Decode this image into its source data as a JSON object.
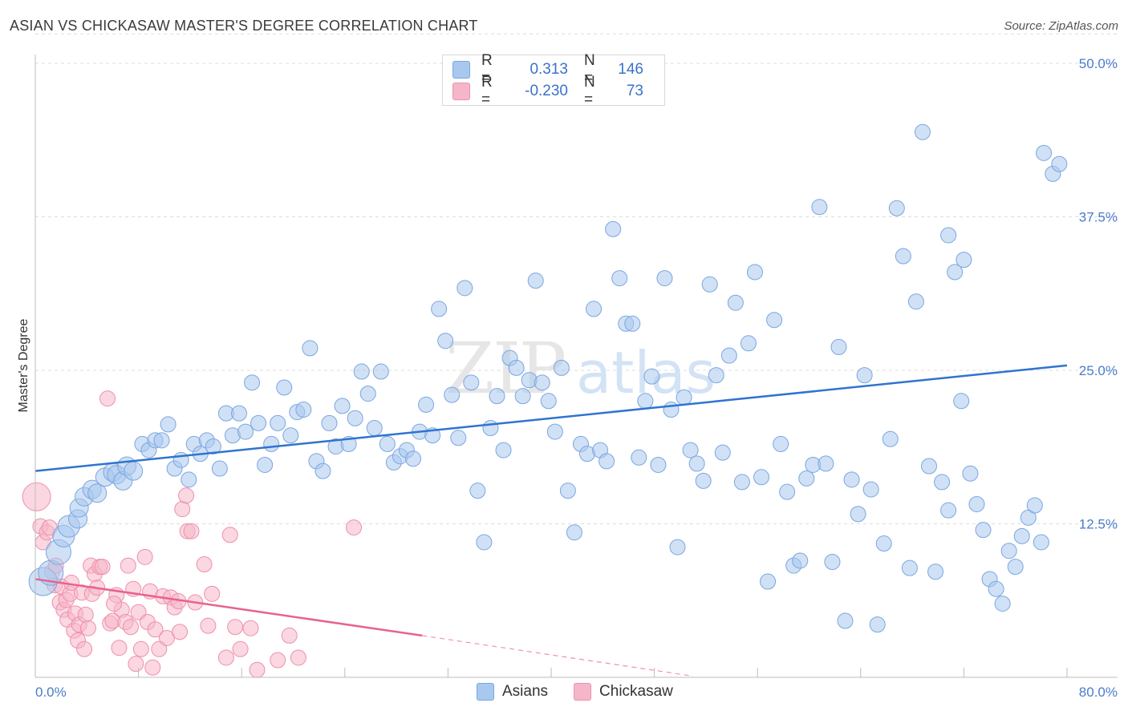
{
  "title": "ASIAN VS CHICKASAW MASTER'S DEGREE CORRELATION CHART",
  "source": "Source: ZipAtlas.com",
  "colors": {
    "asian_fill": "#a9c8ef",
    "asian_stroke": "#7aa6e0",
    "asian_line": "#2f74d0",
    "chick_fill": "#f6b6c9",
    "chick_stroke": "#ee8fab",
    "chick_line": "#e8628e",
    "tick_text": "#4a7cc9",
    "grid": "#dcdcdc"
  },
  "legend": {
    "rows": [
      {
        "r_label": "R =",
        "r_value": "0.313",
        "n_label": "N =",
        "n_value": "146",
        "color": "#a9c8ef",
        "border": "#7aa6e0"
      },
      {
        "r_label": "R =",
        "r_value": "-0.230",
        "n_label": "N =",
        "n_value": "73",
        "color": "#f6b6c9",
        "border": "#ee8fab"
      }
    ]
  },
  "bottom_legend": {
    "items": [
      {
        "label": "Asians",
        "color": "#a9c8ef",
        "border": "#7aa6e0"
      },
      {
        "label": "Chickasaw",
        "color": "#f6b6c9",
        "border": "#ee8fab"
      }
    ]
  },
  "watermark": {
    "part1": "ZIP",
    "part2": "atlas"
  },
  "chart_data": {
    "type": "scatter",
    "title": "ASIAN VS CHICKASAW MASTER'S DEGREE CORRELATION CHART",
    "xlabel": "",
    "ylabel": "Master's Degree",
    "xlim": [
      0,
      80
    ],
    "ylim": [
      0,
      50
    ],
    "x_tick_labels": [
      "0.0%",
      "80.0%"
    ],
    "y_ticks": [
      12.5,
      25.0,
      37.5,
      50.0
    ],
    "y_tick_labels": [
      "12.5%",
      "25.0%",
      "37.5%",
      "50.0%"
    ],
    "grid": true,
    "series": [
      {
        "name": "Asians",
        "r": 0.313,
        "n": 146,
        "trend": {
          "x0": 0,
          "y0": 16.8,
          "x1": 80,
          "y1": 25.4
        },
        "points": [
          [
            0.6,
            7.8,
            3
          ],
          [
            1.2,
            8.5,
            2.5
          ],
          [
            1.8,
            10.2,
            2.5
          ],
          [
            2.2,
            11.5,
            2
          ],
          [
            2.6,
            12.3,
            2
          ],
          [
            3.3,
            12.9,
            1.5
          ],
          [
            3.4,
            13.8,
            1.5
          ],
          [
            3.8,
            14.7,
            1.5
          ],
          [
            4.4,
            15.3,
            1.5
          ],
          [
            4.8,
            15.0,
            1.5
          ],
          [
            5.4,
            16.3,
            1.5
          ],
          [
            6.0,
            16.7,
            1.5
          ],
          [
            6.3,
            16.5,
            1.5
          ],
          [
            6.8,
            16.0,
            1.5
          ],
          [
            7.1,
            17.2,
            1.5
          ],
          [
            7.6,
            16.8,
            1.5
          ],
          [
            8.3,
            19.0,
            1
          ],
          [
            8.8,
            18.5,
            1
          ],
          [
            9.3,
            19.3,
            1
          ],
          [
            9.8,
            19.3,
            1
          ],
          [
            10.3,
            20.6,
            1
          ],
          [
            10.8,
            17.0,
            1
          ],
          [
            11.3,
            17.7,
            1
          ],
          [
            11.9,
            16.1,
            1
          ],
          [
            12.3,
            19.0,
            1
          ],
          [
            12.8,
            18.2,
            1
          ],
          [
            13.3,
            19.3,
            1
          ],
          [
            13.8,
            18.8,
            1
          ],
          [
            14.3,
            17.0,
            1
          ],
          [
            14.8,
            21.5,
            1
          ],
          [
            15.3,
            19.7,
            1
          ],
          [
            15.8,
            21.5,
            1
          ],
          [
            16.3,
            20.0,
            1
          ],
          [
            16.8,
            24.0,
            1
          ],
          [
            17.3,
            20.7,
            1
          ],
          [
            17.8,
            17.3,
            1
          ],
          [
            18.3,
            19.0,
            1
          ],
          [
            18.8,
            20.7,
            1
          ],
          [
            19.3,
            23.6,
            1
          ],
          [
            19.8,
            19.7,
            1
          ],
          [
            20.3,
            21.6,
            1
          ],
          [
            20.8,
            21.8,
            1
          ],
          [
            21.3,
            26.8,
            1
          ],
          [
            21.8,
            17.6,
            1
          ],
          [
            22.3,
            16.8,
            1
          ],
          [
            22.8,
            20.7,
            1
          ],
          [
            23.3,
            18.8,
            1
          ],
          [
            23.8,
            22.1,
            1
          ],
          [
            24.3,
            19.0,
            1
          ],
          [
            24.8,
            21.1,
            1
          ],
          [
            25.3,
            24.9,
            1
          ],
          [
            25.8,
            23.1,
            1
          ],
          [
            26.3,
            20.3,
            1
          ],
          [
            26.8,
            24.9,
            1
          ],
          [
            27.3,
            19.0,
            1
          ],
          [
            27.8,
            17.5,
            1
          ],
          [
            28.3,
            18.0,
            1
          ],
          [
            28.8,
            18.5,
            1
          ],
          [
            29.3,
            17.8,
            1
          ],
          [
            29.8,
            20.0,
            1
          ],
          [
            30.3,
            22.2,
            1
          ],
          [
            30.8,
            19.7,
            1
          ],
          [
            31.3,
            30.0,
            1
          ],
          [
            31.8,
            27.4,
            1
          ],
          [
            32.3,
            23.0,
            1
          ],
          [
            32.8,
            19.5,
            1
          ],
          [
            33.3,
            31.7,
            1
          ],
          [
            33.8,
            24.0,
            1
          ],
          [
            34.3,
            15.2,
            1
          ],
          [
            34.8,
            11.0,
            1
          ],
          [
            35.3,
            20.3,
            1
          ],
          [
            35.8,
            22.9,
            1
          ],
          [
            36.3,
            18.5,
            1
          ],
          [
            36.8,
            26.0,
            1
          ],
          [
            37.3,
            25.2,
            1
          ],
          [
            37.8,
            22.9,
            1
          ],
          [
            38.3,
            24.2,
            1
          ],
          [
            38.8,
            32.3,
            1
          ],
          [
            39.3,
            24.0,
            1
          ],
          [
            39.8,
            22.5,
            1
          ],
          [
            40.3,
            20.0,
            1
          ],
          [
            40.8,
            25.2,
            1
          ],
          [
            41.3,
            15.2,
            1
          ],
          [
            41.8,
            11.8,
            1
          ],
          [
            42.3,
            19.0,
            1
          ],
          [
            42.8,
            18.2,
            1
          ],
          [
            43.3,
            30.0,
            1
          ],
          [
            43.8,
            18.5,
            1
          ],
          [
            44.3,
            17.6,
            1
          ],
          [
            44.8,
            36.5,
            1
          ],
          [
            45.3,
            32.5,
            1
          ],
          [
            45.8,
            28.8,
            1
          ],
          [
            46.3,
            28.8,
            1
          ],
          [
            46.8,
            17.9,
            1
          ],
          [
            47.3,
            22.5,
            1
          ],
          [
            47.8,
            24.5,
            1
          ],
          [
            48.3,
            17.3,
            1
          ],
          [
            48.8,
            32.5,
            1
          ],
          [
            49.3,
            21.8,
            1
          ],
          [
            49.8,
            10.6,
            1
          ],
          [
            50.3,
            22.8,
            1
          ],
          [
            50.8,
            18.5,
            1
          ],
          [
            51.3,
            17.4,
            1
          ],
          [
            51.8,
            16.0,
            1
          ],
          [
            52.3,
            32.0,
            1
          ],
          [
            52.8,
            24.6,
            1
          ],
          [
            53.3,
            18.3,
            1
          ],
          [
            53.8,
            26.2,
            1
          ],
          [
            54.3,
            30.5,
            1
          ],
          [
            54.8,
            15.9,
            1
          ],
          [
            55.3,
            27.2,
            1
          ],
          [
            55.8,
            33.0,
            1
          ],
          [
            56.3,
            16.3,
            1
          ],
          [
            56.8,
            7.8,
            1
          ],
          [
            57.3,
            29.1,
            1
          ],
          [
            57.8,
            19.0,
            1
          ],
          [
            58.3,
            15.1,
            1
          ],
          [
            58.8,
            9.1,
            1
          ],
          [
            59.3,
            9.5,
            1
          ],
          [
            59.8,
            16.2,
            1
          ],
          [
            60.3,
            17.3,
            1
          ],
          [
            60.8,
            38.3,
            1
          ],
          [
            61.3,
            17.4,
            1
          ],
          [
            61.8,
            9.4,
            1
          ],
          [
            62.3,
            26.9,
            1
          ],
          [
            62.8,
            4.6,
            1
          ],
          [
            63.3,
            16.1,
            1
          ],
          [
            63.8,
            13.3,
            1
          ],
          [
            64.3,
            24.6,
            1
          ],
          [
            64.8,
            15.3,
            1
          ],
          [
            65.3,
            4.3,
            1
          ],
          [
            65.8,
            10.9,
            1
          ],
          [
            66.3,
            19.4,
            1
          ],
          [
            66.8,
            38.2,
            1
          ],
          [
            67.3,
            34.3,
            1
          ],
          [
            67.8,
            8.9,
            1
          ],
          [
            68.3,
            30.6,
            1
          ],
          [
            68.8,
            44.4,
            1
          ],
          [
            69.3,
            17.2,
            1
          ],
          [
            69.8,
            8.6,
            1
          ],
          [
            70.3,
            15.9,
            1
          ],
          [
            70.8,
            13.6,
            1
          ],
          [
            71.3,
            33.0,
            1
          ],
          [
            71.8,
            22.5,
            1
          ],
          [
            72.5,
            16.6,
            1
          ],
          [
            73.0,
            14.1,
            1
          ],
          [
            73.5,
            12.0,
            1
          ],
          [
            74.0,
            8.0,
            1
          ],
          [
            74.5,
            7.2,
            1
          ],
          [
            75.0,
            6.0,
            1
          ],
          [
            75.5,
            10.3,
            1
          ],
          [
            76.0,
            9.0,
            1
          ],
          [
            76.5,
            11.5,
            1
          ],
          [
            77.0,
            13.0,
            1
          ],
          [
            77.5,
            14.0,
            1
          ],
          [
            78.0,
            11.0,
            1
          ],
          [
            78.2,
            42.7,
            1
          ],
          [
            78.9,
            41.0,
            1
          ],
          [
            79.4,
            41.8,
            1
          ],
          [
            70.8,
            36.0,
            1
          ],
          [
            72.0,
            34.0,
            1
          ]
        ]
      },
      {
        "name": "Chickasaw",
        "r": -0.23,
        "n": 73,
        "trend": {
          "x0": 0,
          "y0": 8.0,
          "x1": 30,
          "y1": 3.4
        },
        "trend_dashed": {
          "x0": 30,
          "y0": 3.4,
          "x1": 51,
          "y1": 0.1
        },
        "points": [
          [
            0.1,
            14.7,
            3
          ],
          [
            0.4,
            12.3,
            1
          ],
          [
            0.6,
            11.0,
            1
          ],
          [
            0.9,
            11.8,
            1
          ],
          [
            1.1,
            12.2,
            1
          ],
          [
            1.3,
            8.6,
            1
          ],
          [
            1.5,
            7.5,
            1
          ],
          [
            1.6,
            9.1,
            1
          ],
          [
            1.9,
            6.1,
            1
          ],
          [
            2.0,
            7.4,
            1
          ],
          [
            2.2,
            5.5,
            1
          ],
          [
            2.4,
            6.3,
            1
          ],
          [
            2.5,
            4.7,
            1
          ],
          [
            2.7,
            6.8,
            1
          ],
          [
            2.8,
            7.7,
            1
          ],
          [
            3.0,
            3.8,
            1
          ],
          [
            3.1,
            5.2,
            1
          ],
          [
            3.3,
            3.0,
            1
          ],
          [
            3.4,
            4.3,
            1
          ],
          [
            3.6,
            6.9,
            1
          ],
          [
            3.8,
            2.3,
            1
          ],
          [
            3.9,
            5.1,
            1
          ],
          [
            4.1,
            4.0,
            1
          ],
          [
            4.3,
            9.1,
            1
          ],
          [
            4.4,
            6.8,
            1
          ],
          [
            4.6,
            8.4,
            1
          ],
          [
            4.8,
            7.3,
            1
          ],
          [
            5.0,
            9.0,
            1
          ],
          [
            5.2,
            9.0,
            1
          ],
          [
            5.8,
            4.4,
            1
          ],
          [
            6.0,
            4.6,
            1
          ],
          [
            6.3,
            6.7,
            1
          ],
          [
            6.5,
            2.4,
            1
          ],
          [
            6.7,
            5.5,
            1
          ],
          [
            7.0,
            4.5,
            1
          ],
          [
            7.2,
            9.1,
            1
          ],
          [
            7.4,
            4.1,
            1
          ],
          [
            7.6,
            7.2,
            1
          ],
          [
            7.8,
            1.1,
            1
          ],
          [
            8.0,
            5.3,
            1
          ],
          [
            8.2,
            2.3,
            1
          ],
          [
            8.5,
            9.8,
            1
          ],
          [
            8.7,
            4.5,
            1
          ],
          [
            8.9,
            7.0,
            1
          ],
          [
            9.1,
            0.8,
            1
          ],
          [
            9.3,
            3.9,
            1
          ],
          [
            9.6,
            2.3,
            1
          ],
          [
            9.9,
            6.6,
            1
          ],
          [
            10.2,
            3.2,
            1
          ],
          [
            10.5,
            6.5,
            1
          ],
          [
            10.8,
            5.7,
            1
          ],
          [
            11.1,
            6.2,
            1
          ],
          [
            11.4,
            13.7,
            1
          ],
          [
            11.7,
            14.8,
            1
          ],
          [
            11.8,
            11.9,
            1
          ],
          [
            12.1,
            11.9,
            1
          ],
          [
            12.4,
            6.1,
            1
          ],
          [
            13.1,
            9.2,
            1
          ],
          [
            13.4,
            4.2,
            1
          ],
          [
            13.7,
            6.8,
            1
          ],
          [
            14.8,
            1.6,
            1
          ],
          [
            15.1,
            11.6,
            1
          ],
          [
            15.5,
            4.1,
            1
          ],
          [
            15.9,
            2.3,
            1
          ],
          [
            16.7,
            4.0,
            1
          ],
          [
            17.2,
            0.6,
            1
          ],
          [
            18.8,
            1.4,
            1
          ],
          [
            19.7,
            3.4,
            1
          ],
          [
            20.4,
            1.6,
            1
          ],
          [
            24.7,
            12.2,
            1
          ],
          [
            5.6,
            22.7,
            1
          ],
          [
            6.1,
            6.0,
            1
          ],
          [
            11.2,
            3.7,
            1
          ]
        ]
      }
    ]
  }
}
